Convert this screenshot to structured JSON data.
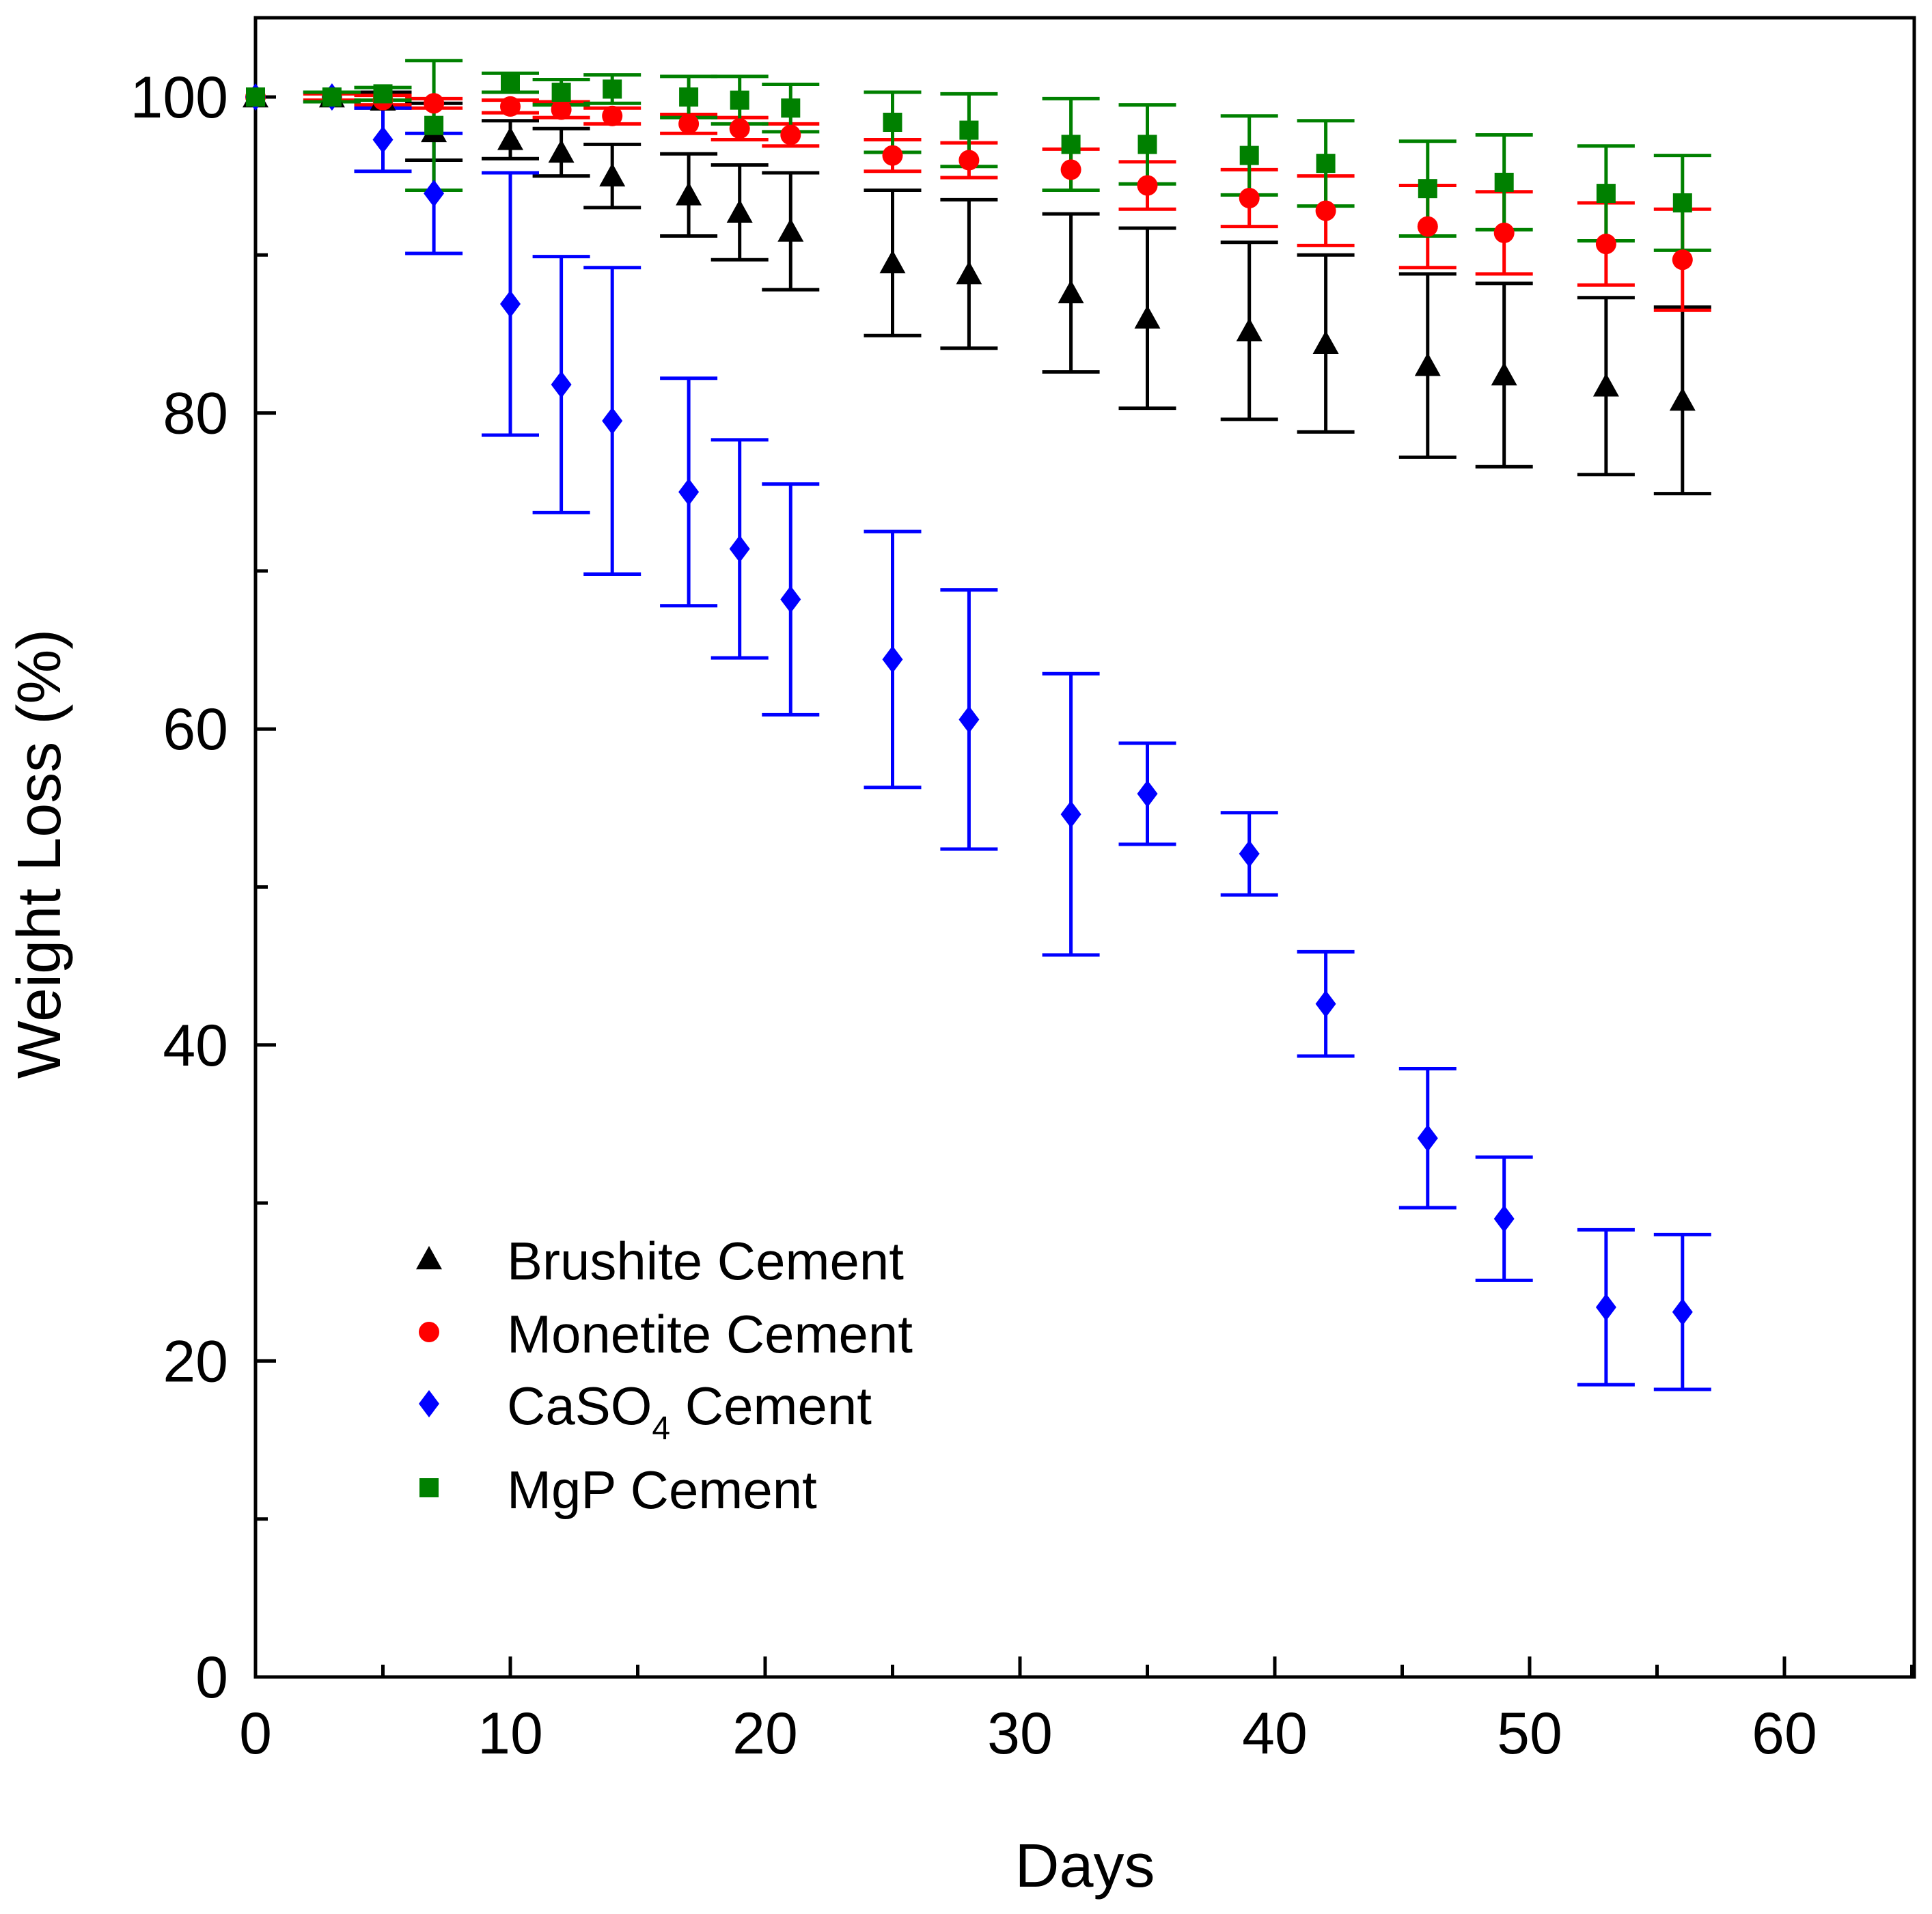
{
  "chart_data": {
    "type": "scatter",
    "title": "",
    "xlabel": "Days",
    "ylabel": "Weight Loss (%)",
    "xlim": [
      0,
      65
    ],
    "ylim": [
      0,
      105
    ],
    "xticks": [
      0,
      10,
      20,
      30,
      40,
      50,
      60
    ],
    "yticks": [
      0,
      20,
      40,
      60,
      80,
      100
    ],
    "x_minor_step": 5,
    "y_minor_step": 10,
    "grid": false,
    "legend_position": "lower-left",
    "series": [
      {
        "name": "Brushite Cement",
        "legend_main": "Brushite Cement",
        "legend_sub": "",
        "legend_tail": "",
        "marker": "triangle",
        "color": "#000000",
        "x": [
          0,
          3,
          5,
          7,
          10,
          12,
          14,
          17,
          19,
          21,
          25,
          28,
          32,
          35,
          39,
          42,
          46,
          49,
          53,
          56
        ],
        "y": [
          100,
          100,
          99.8,
          97.8,
          97.3,
          96.5,
          95.0,
          93.8,
          92.7,
          91.5,
          89.5,
          88.8,
          87.6,
          86.0,
          85.2,
          84.4,
          83.0,
          82.4,
          81.7,
          80.8
        ],
        "err": [
          0,
          0.3,
          0.5,
          1.8,
          1.2,
          1.5,
          2.0,
          2.6,
          3.0,
          3.7,
          4.6,
          4.7,
          5.0,
          5.7,
          5.6,
          5.6,
          5.8,
          5.8,
          5.6,
          5.9
        ]
      },
      {
        "name": "Monetite Cement",
        "legend_main": "Monetite Cement",
        "legend_sub": "",
        "legend_tail": "",
        "marker": "circle",
        "color": "#ff0000",
        "x": [
          0,
          3,
          5,
          7,
          10,
          12,
          14,
          17,
          19,
          21,
          25,
          28,
          32,
          35,
          39,
          42,
          46,
          49,
          53,
          56
        ],
        "y": [
          100,
          100,
          99.8,
          99.6,
          99.4,
          99.2,
          98.8,
          98.3,
          98.0,
          97.6,
          96.3,
          96.0,
          95.4,
          94.4,
          93.6,
          92.8,
          91.8,
          91.4,
          90.7,
          89.7
        ],
        "err": [
          0,
          0.2,
          0.3,
          0.3,
          0.4,
          0.5,
          0.5,
          0.6,
          0.7,
          0.7,
          1.0,
          1.1,
          1.3,
          1.5,
          1.8,
          2.2,
          2.6,
          2.6,
          2.6,
          3.2
        ]
      },
      {
        "name": "CaSO4 Cement",
        "legend_main": "CaSO",
        "legend_sub": "4",
        "legend_tail": " Cement",
        "marker": "diamond",
        "color": "#0000ff",
        "x": [
          0,
          3,
          5,
          7,
          10,
          12,
          14,
          17,
          19,
          21,
          25,
          28,
          32,
          35,
          39,
          42,
          46,
          49,
          53,
          56
        ],
        "y": [
          100,
          100,
          97.3,
          93.9,
          86.9,
          81.8,
          79.5,
          75.0,
          71.4,
          68.2,
          64.4,
          60.6,
          54.6,
          55.9,
          52.1,
          42.6,
          34.1,
          29.0,
          23.4,
          23.1
        ],
        "err": [
          0,
          0.3,
          2.0,
          3.8,
          8.3,
          8.1,
          9.7,
          7.2,
          6.9,
          7.3,
          8.1,
          8.2,
          8.9,
          3.2,
          2.6,
          3.3,
          4.4,
          3.9,
          4.9,
          4.9
        ]
      },
      {
        "name": "MgP Cement",
        "legend_main": "MgP Cement",
        "legend_sub": "",
        "legend_tail": "",
        "marker": "square",
        "color": "#008000",
        "x": [
          0,
          3,
          5,
          7,
          10,
          12,
          14,
          17,
          19,
          21,
          25,
          28,
          32,
          35,
          39,
          42,
          46,
          49,
          53,
          56
        ],
        "y": [
          100,
          100,
          100.2,
          98.2,
          100.9,
          100.3,
          100.5,
          100.0,
          99.8,
          99.3,
          98.4,
          97.9,
          97.0,
          97.0,
          96.3,
          95.8,
          94.2,
          94.6,
          93.9,
          93.3
        ],
        "err": [
          0,
          0.3,
          0.4,
          4.1,
          0.6,
          0.8,
          0.9,
          1.3,
          1.5,
          1.5,
          1.9,
          2.3,
          2.9,
          2.5,
          2.5,
          2.7,
          3.0,
          3.0,
          3.0,
          3.0
        ]
      }
    ]
  }
}
